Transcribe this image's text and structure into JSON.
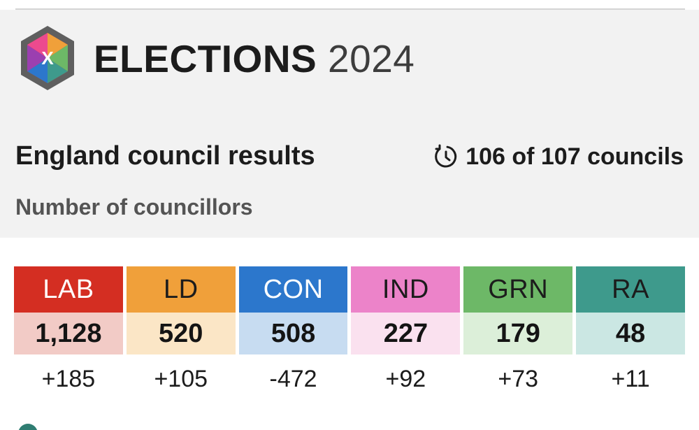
{
  "header": {
    "brand_word": "ELECTIONS",
    "brand_year": "2024",
    "logo_letter": "X"
  },
  "section": {
    "title": "England council results",
    "progress_icon": "clock-refresh-icon",
    "progress_text": "106 of 107 councils",
    "subtitle": "Number of councillors"
  },
  "parties": [
    {
      "name": "LAB",
      "seats": "1,128",
      "change": "+185",
      "color": "#d42e22",
      "light": "#f2cbc6",
      "text": "#ffffff"
    },
    {
      "name": "LD",
      "seats": "520",
      "change": "+105",
      "color": "#f0a03a",
      "light": "#fbe6c6",
      "text": "#1c1c1c"
    },
    {
      "name": "CON",
      "seats": "508",
      "change": "-472",
      "color": "#2c77cc",
      "light": "#c7dcf1",
      "text": "#ffffff"
    },
    {
      "name": "IND",
      "seats": "227",
      "change": "+92",
      "color": "#ec83c9",
      "light": "#fae1ef",
      "text": "#1c1c1c"
    },
    {
      "name": "GRN",
      "seats": "179",
      "change": "+73",
      "color": "#6db867",
      "light": "#dcefd9",
      "text": "#1c1c1c"
    },
    {
      "name": "RA",
      "seats": "48",
      "change": "+11",
      "color": "#3e9a8c",
      "light": "#cbe7e3",
      "text": "#1c1c1c"
    }
  ]
}
